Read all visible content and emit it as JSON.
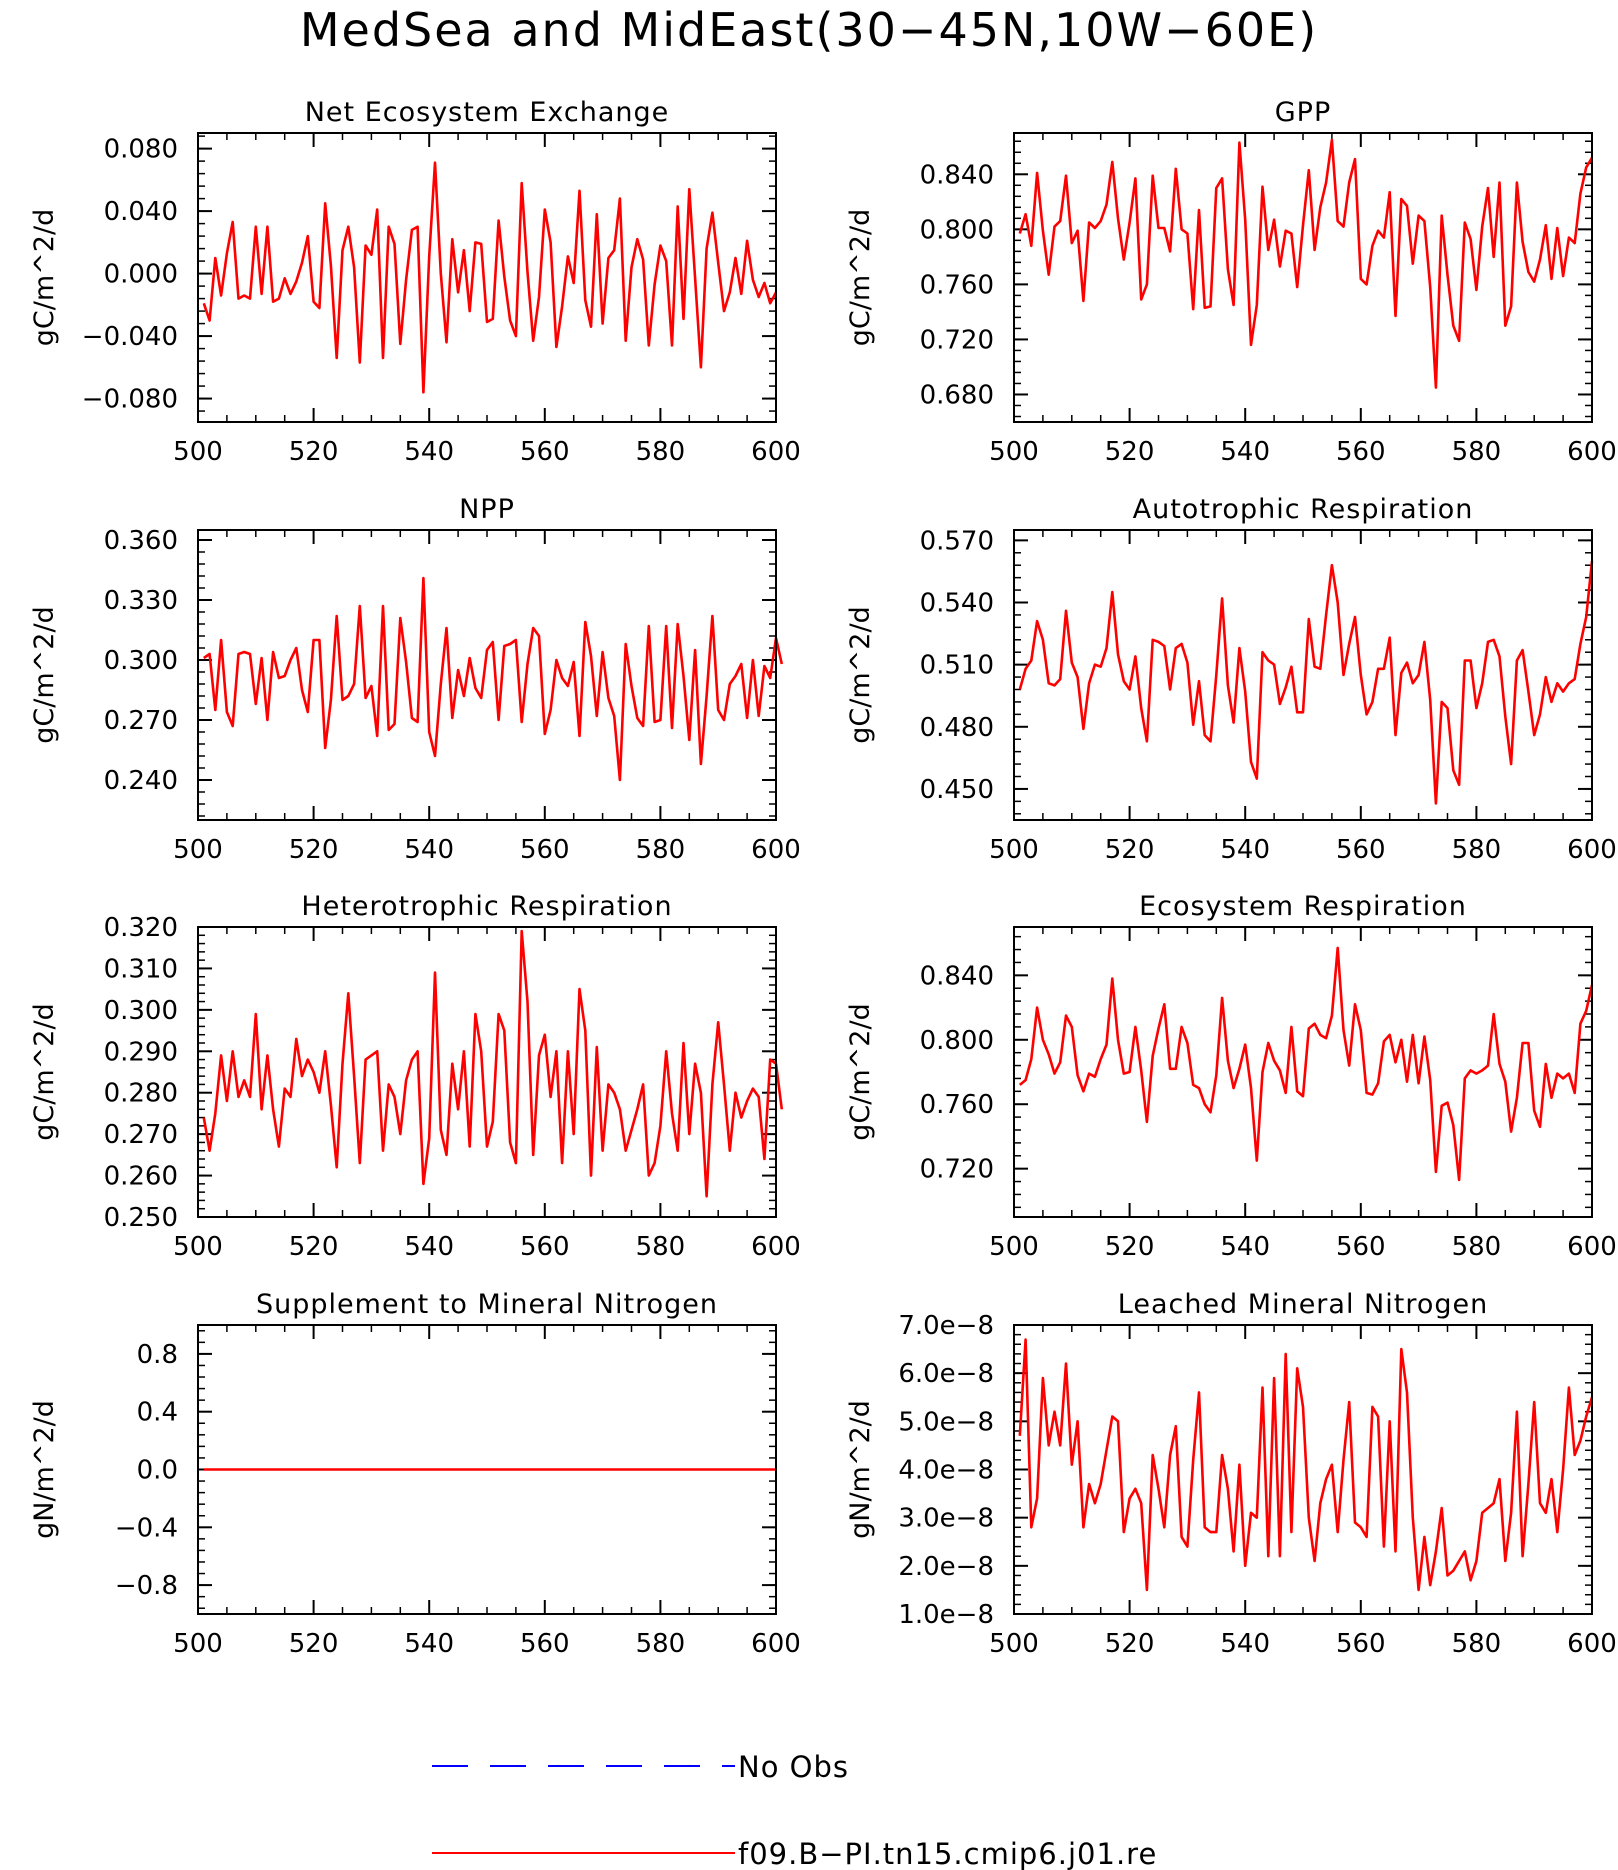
{
  "figure_title": "MedSea and MidEast(30−45N,10W−60E)",
  "colors": {
    "model": "#ff0000",
    "obs": "#0000ff",
    "axes": "#000000"
  },
  "legend": [
    {
      "label": "No Obs",
      "style": "dashed",
      "color": "#0000ff"
    },
    {
      "label": "f09.B−PI.tn15.cmip6.j01.re",
      "style": "solid",
      "color": "#ff0000"
    }
  ],
  "chart_data": [
    {
      "type": "line",
      "title": "Net Ecosystem Exchange",
      "ylabel": "gC/m^2/d",
      "xlim": [
        500,
        600
      ],
      "ylim": [
        -0.095,
        0.09
      ],
      "xticks": [
        500,
        520,
        540,
        560,
        580,
        600
      ],
      "yticks": [
        -0.08,
        -0.04,
        0.0,
        0.04,
        0.08
      ],
      "ytick_labels": [
        "−0.080",
        "−0.040",
        "0.000",
        "0.040",
        "0.080"
      ],
      "x_start": 501,
      "series": [
        {
          "color": "#ff0000",
          "values": [
            -0.019,
            -0.03,
            0.01,
            -0.014,
            0.013,
            0.033,
            -0.016,
            -0.014,
            -0.016,
            0.03,
            -0.013,
            0.03,
            -0.018,
            -0.016,
            -0.003,
            -0.013,
            -0.005,
            0.007,
            0.024,
            -0.018,
            -0.022,
            0.045,
            0.005,
            -0.054,
            0.015,
            0.03,
            0.004,
            -0.057,
            0.018,
            0.012,
            0.041,
            -0.054,
            0.03,
            0.019,
            -0.045,
            -0.004,
            0.028,
            0.03,
            -0.076,
            0.011,
            0.071,
            0.0,
            -0.044,
            0.022,
            -0.012,
            0.015,
            -0.024,
            0.02,
            0.019,
            -0.031,
            -0.029,
            0.034,
            -0.002,
            -0.03,
            -0.04,
            0.058,
            0.001,
            -0.043,
            -0.015,
            0.041,
            0.02,
            -0.047,
            -0.021,
            0.011,
            -0.006,
            0.053,
            -0.017,
            -0.034,
            0.038,
            -0.032,
            0.01,
            0.015,
            0.048,
            -0.043,
            0.004,
            0.022,
            0.009,
            -0.046,
            -0.007,
            0.018,
            0.008,
            -0.046,
            0.043,
            -0.029,
            0.054,
            -0.003,
            -0.06,
            0.016,
            0.039,
            0.007,
            -0.024,
            -0.012,
            0.01,
            -0.013,
            0.021,
            -0.004,
            -0.015,
            -0.006,
            -0.019,
            -0.012
          ]
        }
      ]
    },
    {
      "type": "line",
      "title": "GPP",
      "ylabel": "gC/m^2/d",
      "xlim": [
        500,
        600
      ],
      "ylim": [
        0.66,
        0.87
      ],
      "xticks": [
        500,
        520,
        540,
        560,
        580,
        600
      ],
      "yticks": [
        0.68,
        0.72,
        0.76,
        0.8,
        0.84
      ],
      "ytick_labels": [
        "0.680",
        "0.720",
        "0.760",
        "0.800",
        "0.840"
      ],
      "x_start": 501,
      "series": [
        {
          "color": "#ff0000",
          "values": [
            0.797,
            0.811,
            0.788,
            0.841,
            0.799,
            0.767,
            0.802,
            0.806,
            0.839,
            0.79,
            0.799,
            0.748,
            0.805,
            0.801,
            0.806,
            0.818,
            0.849,
            0.808,
            0.778,
            0.805,
            0.837,
            0.749,
            0.76,
            0.839,
            0.801,
            0.801,
            0.784,
            0.844,
            0.8,
            0.797,
            0.742,
            0.814,
            0.743,
            0.744,
            0.83,
            0.837,
            0.771,
            0.745,
            0.863,
            0.807,
            0.716,
            0.745,
            0.831,
            0.785,
            0.807,
            0.773,
            0.799,
            0.797,
            0.758,
            0.803,
            0.843,
            0.785,
            0.816,
            0.834,
            0.865,
            0.806,
            0.802,
            0.834,
            0.851,
            0.764,
            0.76,
            0.788,
            0.799,
            0.794,
            0.827,
            0.737,
            0.822,
            0.817,
            0.775,
            0.81,
            0.806,
            0.758,
            0.685,
            0.81,
            0.767,
            0.73,
            0.719,
            0.805,
            0.793,
            0.756,
            0.802,
            0.83,
            0.78,
            0.834,
            0.73,
            0.744,
            0.834,
            0.791,
            0.769,
            0.762,
            0.778,
            0.803,
            0.764,
            0.801,
            0.766,
            0.794,
            0.79,
            0.826,
            0.845,
            0.852
          ]
        }
      ]
    },
    {
      "type": "line",
      "title": "NPP",
      "ylabel": "gC/m^2/d",
      "xlim": [
        500,
        600
      ],
      "ylim": [
        0.22,
        0.365
      ],
      "xticks": [
        500,
        520,
        540,
        560,
        580,
        600
      ],
      "yticks": [
        0.24,
        0.27,
        0.3,
        0.33,
        0.36
      ],
      "ytick_labels": [
        "0.240",
        "0.270",
        "0.300",
        "0.330",
        "0.360"
      ],
      "x_start": 501,
      "series": [
        {
          "color": "#ff0000",
          "values": [
            0.301,
            0.303,
            0.275,
            0.31,
            0.274,
            0.267,
            0.303,
            0.304,
            0.303,
            0.278,
            0.301,
            0.27,
            0.304,
            0.291,
            0.292,
            0.3,
            0.306,
            0.285,
            0.274,
            0.31,
            0.31,
            0.256,
            0.28,
            0.322,
            0.28,
            0.282,
            0.288,
            0.327,
            0.281,
            0.287,
            0.262,
            0.327,
            0.265,
            0.268,
            0.321,
            0.299,
            0.271,
            0.269,
            0.341,
            0.264,
            0.252,
            0.288,
            0.316,
            0.271,
            0.295,
            0.282,
            0.301,
            0.286,
            0.281,
            0.305,
            0.309,
            0.27,
            0.307,
            0.308,
            0.31,
            0.269,
            0.298,
            0.316,
            0.312,
            0.263,
            0.275,
            0.3,
            0.291,
            0.287,
            0.299,
            0.262,
            0.319,
            0.302,
            0.272,
            0.304,
            0.281,
            0.272,
            0.24,
            0.308,
            0.287,
            0.271,
            0.267,
            0.317,
            0.269,
            0.27,
            0.317,
            0.266,
            0.318,
            0.292,
            0.26,
            0.305,
            0.248,
            0.282,
            0.322,
            0.275,
            0.27,
            0.288,
            0.292,
            0.298,
            0.271,
            0.3,
            0.272,
            0.297,
            0.291,
            0.311,
            0.298
          ]
        }
      ]
    },
    {
      "type": "line",
      "title": "Autotrophic Respiration",
      "ylabel": "gC/m^2/d",
      "xlim": [
        500,
        600
      ],
      "ylim": [
        0.435,
        0.575
      ],
      "xticks": [
        500,
        520,
        540,
        560,
        580,
        600
      ],
      "yticks": [
        0.45,
        0.48,
        0.51,
        0.54,
        0.57
      ],
      "ytick_labels": [
        "0.450",
        "0.480",
        "0.510",
        "0.540",
        "0.570"
      ],
      "x_start": 501,
      "series": [
        {
          "color": "#ff0000",
          "values": [
            0.498,
            0.508,
            0.512,
            0.531,
            0.522,
            0.501,
            0.5,
            0.503,
            0.536,
            0.511,
            0.504,
            0.479,
            0.501,
            0.51,
            0.509,
            0.518,
            0.545,
            0.515,
            0.502,
            0.498,
            0.514,
            0.489,
            0.473,
            0.522,
            0.521,
            0.519,
            0.498,
            0.518,
            0.52,
            0.511,
            0.481,
            0.502,
            0.476,
            0.473,
            0.505,
            0.542,
            0.5,
            0.482,
            0.518,
            0.497,
            0.463,
            0.455,
            0.516,
            0.512,
            0.51,
            0.491,
            0.499,
            0.509,
            0.487,
            0.487,
            0.532,
            0.509,
            0.508,
            0.534,
            0.558,
            0.54,
            0.505,
            0.52,
            0.533,
            0.505,
            0.486,
            0.492,
            0.508,
            0.508,
            0.523,
            0.476,
            0.506,
            0.511,
            0.501,
            0.505,
            0.521,
            0.493,
            0.443,
            0.492,
            0.489,
            0.459,
            0.452,
            0.512,
            0.512,
            0.489,
            0.501,
            0.521,
            0.522,
            0.514,
            0.485,
            0.462,
            0.512,
            0.517,
            0.497,
            0.476,
            0.486,
            0.504,
            0.492,
            0.501,
            0.497,
            0.501,
            0.503,
            0.52,
            0.533,
            0.56
          ]
        }
      ]
    },
    {
      "type": "line",
      "title": "Heterotrophic Respiration",
      "ylabel": "gC/m^2/d",
      "xlim": [
        500,
        600
      ],
      "ylim": [
        0.25,
        0.32
      ],
      "xticks": [
        500,
        520,
        540,
        560,
        580,
        600
      ],
      "yticks": [
        0.25,
        0.26,
        0.27,
        0.28,
        0.29,
        0.3,
        0.31,
        0.32
      ],
      "ytick_labels": [
        "0.250",
        "0.260",
        "0.270",
        "0.280",
        "0.290",
        "0.300",
        "0.310",
        "0.320"
      ],
      "x_start": 501,
      "series": [
        {
          "color": "#ff0000",
          "values": [
            0.274,
            0.266,
            0.275,
            0.289,
            0.278,
            0.29,
            0.279,
            0.283,
            0.279,
            0.299,
            0.276,
            0.289,
            0.276,
            0.267,
            0.281,
            0.279,
            0.293,
            0.284,
            0.288,
            0.285,
            0.28,
            0.29,
            0.277,
            0.262,
            0.287,
            0.304,
            0.284,
            0.263,
            0.288,
            0.289,
            0.29,
            0.266,
            0.282,
            0.279,
            0.27,
            0.283,
            0.288,
            0.29,
            0.258,
            0.269,
            0.309,
            0.271,
            0.265,
            0.287,
            0.276,
            0.29,
            0.267,
            0.299,
            0.29,
            0.267,
            0.273,
            0.299,
            0.295,
            0.268,
            0.263,
            0.319,
            0.302,
            0.265,
            0.289,
            0.294,
            0.279,
            0.29,
            0.263,
            0.29,
            0.27,
            0.305,
            0.295,
            0.26,
            0.291,
            0.266,
            0.282,
            0.28,
            0.276,
            0.266,
            0.271,
            0.276,
            0.282,
            0.26,
            0.263,
            0.272,
            0.29,
            0.275,
            0.266,
            0.292,
            0.27,
            0.287,
            0.28,
            0.255,
            0.282,
            0.297,
            0.282,
            0.266,
            0.28,
            0.274,
            0.278,
            0.281,
            0.279,
            0.264,
            0.288,
            0.287,
            0.276
          ]
        }
      ]
    },
    {
      "type": "line",
      "title": "Ecosystem Respiration",
      "ylabel": "gC/m^2/d",
      "xlim": [
        500,
        600
      ],
      "ylim": [
        0.69,
        0.87
      ],
      "xticks": [
        500,
        520,
        540,
        560,
        580,
        600
      ],
      "yticks": [
        0.72,
        0.76,
        0.8,
        0.84
      ],
      "ytick_labels": [
        "0.720",
        "0.760",
        "0.800",
        "0.840"
      ],
      "x_start": 501,
      "series": [
        {
          "color": "#ff0000",
          "values": [
            0.772,
            0.775,
            0.788,
            0.82,
            0.8,
            0.791,
            0.779,
            0.786,
            0.815,
            0.808,
            0.778,
            0.768,
            0.779,
            0.777,
            0.788,
            0.797,
            0.838,
            0.8,
            0.779,
            0.78,
            0.808,
            0.781,
            0.749,
            0.79,
            0.807,
            0.822,
            0.782,
            0.782,
            0.808,
            0.798,
            0.772,
            0.77,
            0.76,
            0.755,
            0.778,
            0.826,
            0.787,
            0.77,
            0.782,
            0.797,
            0.77,
            0.725,
            0.78,
            0.798,
            0.787,
            0.781,
            0.767,
            0.808,
            0.768,
            0.765,
            0.807,
            0.81,
            0.803,
            0.801,
            0.815,
            0.857,
            0.806,
            0.784,
            0.822,
            0.806,
            0.767,
            0.766,
            0.773,
            0.799,
            0.803,
            0.786,
            0.8,
            0.774,
            0.803,
            0.773,
            0.802,
            0.775,
            0.718,
            0.759,
            0.761,
            0.747,
            0.713,
            0.776,
            0.781,
            0.779,
            0.781,
            0.784,
            0.816,
            0.785,
            0.774,
            0.743,
            0.764,
            0.798,
            0.798,
            0.756,
            0.746,
            0.785,
            0.764,
            0.779,
            0.776,
            0.779,
            0.767,
            0.81,
            0.818,
            0.834
          ]
        }
      ]
    },
    {
      "type": "line",
      "title": "Supplement to Mineral Nitrogen",
      "ylabel": "gN/m^2/d",
      "xlim": [
        500,
        600
      ],
      "ylim": [
        -1.0,
        1.0
      ],
      "xticks": [
        500,
        520,
        540,
        560,
        580,
        600
      ],
      "yticks": [
        -0.8,
        -0.4,
        0.0,
        0.4,
        0.8
      ],
      "ytick_labels": [
        "−0.8",
        "−0.4",
        "0.0",
        "0.4",
        "0.8"
      ],
      "x_start": 501,
      "series": [
        {
          "color": "#ff0000",
          "values": [
            0.0,
            0.0
          ]
        }
      ]
    },
    {
      "type": "line",
      "title": "Leached Mineral Nitrogen",
      "ylabel": "gN/m^2/d",
      "xlim": [
        500,
        600
      ],
      "ylim": [
        1e-08,
        7e-08
      ],
      "xticks": [
        500,
        520,
        540,
        560,
        580,
        600
      ],
      "yticks": [
        1e-08,
        2e-08,
        3e-08,
        4e-08,
        5e-08,
        6e-08,
        7e-08
      ],
      "ytick_labels": [
        "1.0e−8",
        "2.0e−8",
        "3.0e−8",
        "4.0e−8",
        "5.0e−8",
        "6.0e−8",
        "7.0e−8"
      ],
      "x_start": 501,
      "series": [
        {
          "color": "#ff0000",
          "values": [
            4.7e-08,
            6.7e-08,
            2.8e-08,
            3.4e-08,
            5.9e-08,
            4.5e-08,
            5.2e-08,
            4.5e-08,
            6.2e-08,
            4.1e-08,
            5e-08,
            2.8e-08,
            3.7e-08,
            3.3e-08,
            3.7e-08,
            4.4e-08,
            5.1e-08,
            5e-08,
            2.7e-08,
            3.4e-08,
            3.6e-08,
            3.3e-08,
            1.5e-08,
            4.3e-08,
            3.6e-08,
            2.8e-08,
            4.3e-08,
            4.9e-08,
            2.6e-08,
            2.4e-08,
            4.2e-08,
            5.6e-08,
            2.8e-08,
            2.7e-08,
            2.7e-08,
            4.3e-08,
            3.6e-08,
            2.3e-08,
            4.1e-08,
            2e-08,
            3.1e-08,
            3e-08,
            5.7e-08,
            2.2e-08,
            5.9e-08,
            2.2e-08,
            6.4e-08,
            2.7e-08,
            6.1e-08,
            5.3e-08,
            3e-08,
            2.1e-08,
            3.3e-08,
            3.8e-08,
            4.1e-08,
            2.7e-08,
            4.2e-08,
            5.4e-08,
            2.9e-08,
            2.8e-08,
            2.6e-08,
            5.3e-08,
            5.1e-08,
            2.4e-08,
            5e-08,
            2.3e-08,
            6.5e-08,
            5.6e-08,
            3e-08,
            1.5e-08,
            2.6e-08,
            1.6e-08,
            2.3e-08,
            3.2e-08,
            1.8e-08,
            1.9e-08,
            2.1e-08,
            2.3e-08,
            1.7e-08,
            2.1e-08,
            3.1e-08,
            3.2e-08,
            3.3e-08,
            3.8e-08,
            2.1e-08,
            3.1e-08,
            5.2e-08,
            2.2e-08,
            3.7e-08,
            5.4e-08,
            3.3e-08,
            3.1e-08,
            3.8e-08,
            2.7e-08,
            4e-08,
            5.7e-08,
            4.3e-08,
            4.6e-08,
            5.1e-08,
            5.5e-08
          ]
        }
      ]
    }
  ]
}
